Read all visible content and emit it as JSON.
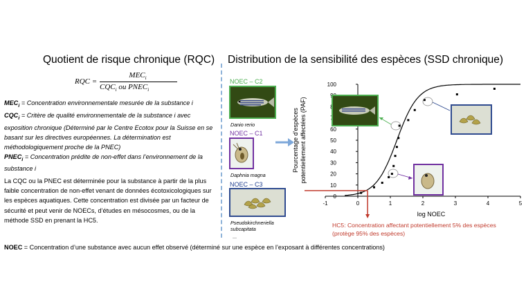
{
  "left": {
    "title": "Quotient de risque chronique (RQC)",
    "formula": {
      "lhs": "RQC =",
      "numerator": "MEC",
      "denominator_a": "CQC",
      "denominator_or": "ou",
      "denominator_b": "PNEC",
      "subscript": "i"
    },
    "definitions": [
      {
        "term": "MEC",
        "sub": "i",
        "text": " = Concentration environnementale mesurée de la substance i"
      },
      {
        "term": "CQC",
        "sub": "i",
        "text": " = Critère de qualité environnementale de la substance i avec exposition chronique (Déterminé par le Centre Ecotox pour la Suisse en se basant sur les directives européennes. La détermination est méthodologiquement proche de la PNEC)"
      },
      {
        "term": "PNEC",
        "sub": "i",
        "text": " = Concentration prédite de non-effet dans l’environnement de la substance i"
      }
    ],
    "paragraph": "La CQC ou la PNEC est déterminée pour la substance à partir de la plus faible concentration de non-effet venant de données écotoxicologiques sur les espèces aquatiques. Cette concentration est divisée par un facteur de sécurité et peut venir de NOECs, d’études en mésocosmes, ou de la méthode SSD en prenant la HC5."
  },
  "right": {
    "title": "Distribution de la sensibilité des espèces (SSD chronique)",
    "photos": [
      {
        "label": "NOEC – C2",
        "species": "Danio rerio",
        "label_color": "#4caf50",
        "border_color": "#4caf50"
      },
      {
        "label": "NOEC – C1",
        "species": "Daphnia magna",
        "label_color": "#7030a0",
        "border_color": "#7030a0"
      },
      {
        "label": "NOEC – C3",
        "species": "Pseudokirchneriella subcapitata",
        "label_color": "#1f3f8f",
        "border_color": "#2e4a8f"
      }
    ],
    "ellipsis": "...",
    "hc5_line1": "HC5: Concentration affectant potentiellement 5% des espèces",
    "hc5_line2": "(protège 95% des espèces)",
    "hc5_color": "#c0392b"
  },
  "footer": {
    "term": "NOEC",
    "text": " = Concentration d’une substance avec aucun effet observé (déterminé sur une espèce en l’exposant à différentes concentrations)"
  },
  "chart_data": {
    "type": "scatter",
    "xlabel": "log NOEC",
    "ylabel_line1": "Pourcentage d'espèces",
    "ylabel_line2": "potentiellement affectées (PAF)",
    "xlim": [
      -1,
      5
    ],
    "ylim": [
      0,
      100
    ],
    "xticks": [
      "-1",
      "0",
      "1",
      "2",
      "3",
      "4",
      "5"
    ],
    "yticks": [
      "0",
      "10",
      "20",
      "30",
      "40",
      "50",
      "60",
      "70",
      "80",
      "90",
      "100"
    ],
    "grid": false,
    "points": [
      {
        "x": 0.1,
        "y": 3
      },
      {
        "x": 0.5,
        "y": 8
      },
      {
        "x": 0.75,
        "y": 12
      },
      {
        "x": 0.95,
        "y": 17
      },
      {
        "x": 1.05,
        "y": 20
      },
      {
        "x": 1.1,
        "y": 27
      },
      {
        "x": 1.15,
        "y": 36
      },
      {
        "x": 1.2,
        "y": 44
      },
      {
        "x": 1.25,
        "y": 52
      },
      {
        "x": 1.28,
        "y": 63
      },
      {
        "x": 1.55,
        "y": 68
      },
      {
        "x": 1.75,
        "y": 77
      },
      {
        "x": 2.05,
        "y": 86
      },
      {
        "x": 3.05,
        "y": 91
      },
      {
        "x": 4.2,
        "y": 96
      }
    ],
    "curve": {
      "mu": 1.2,
      "sigma": 0.55
    },
    "hc5": {
      "x": 0.3,
      "y": 5
    }
  }
}
